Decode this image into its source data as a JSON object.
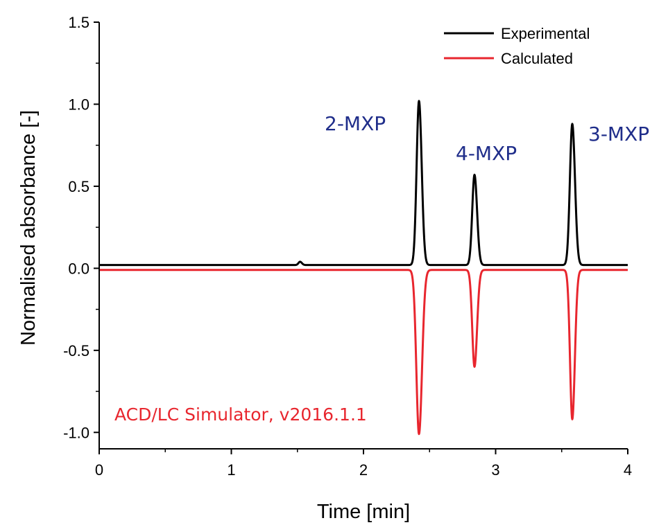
{
  "chart_data": {
    "type": "line",
    "xlabel": "Time [min]",
    "ylabel": "Normalised absorbance [-]",
    "xlim": [
      0,
      4
    ],
    "ylim": [
      -1.1,
      1.5
    ],
    "xticks": [
      0,
      1,
      2,
      3,
      4
    ],
    "xtick_labels": [
      "0",
      "1",
      "2",
      "3",
      "4"
    ],
    "yticks": [
      -1.0,
      -0.5,
      0.0,
      0.5,
      1.0,
      1.5
    ],
    "ytick_labels": [
      "-1.0",
      "-0.5",
      "0.0",
      "0.5",
      "1.0",
      "1.5"
    ],
    "grid": false,
    "legend_position": "top-right",
    "series": [
      {
        "name": "Experimental",
        "color": "#000000",
        "baseline": 0.02,
        "peaks": [
          {
            "time": 1.52,
            "height": 0.02,
            "width": 0.012
          },
          {
            "time": 2.42,
            "height": 1.0,
            "width": 0.018
          },
          {
            "time": 2.84,
            "height": 0.55,
            "width": 0.017
          },
          {
            "time": 3.58,
            "height": 0.86,
            "width": 0.018
          }
        ]
      },
      {
        "name": "Calculated",
        "color": "#e8262e",
        "baseline": -0.01,
        "peaks": [
          {
            "time": 2.42,
            "height": -1.0,
            "width": 0.02
          },
          {
            "time": 2.84,
            "height": -0.59,
            "width": 0.017
          },
          {
            "time": 3.58,
            "height": -0.91,
            "width": 0.017
          }
        ]
      }
    ],
    "peak_labels": [
      {
        "text": "2-MXP",
        "time": 2.42,
        "color": "#1f2d8a"
      },
      {
        "text": "4-MXP",
        "time": 2.84,
        "color": "#1f2d8a"
      },
      {
        "text": "3-MXP",
        "time": 3.58,
        "color": "#1f2d8a"
      }
    ],
    "annotation": {
      "text": "ACD/LC Simulator, v2016.1.1",
      "color": "#e8262e"
    }
  }
}
